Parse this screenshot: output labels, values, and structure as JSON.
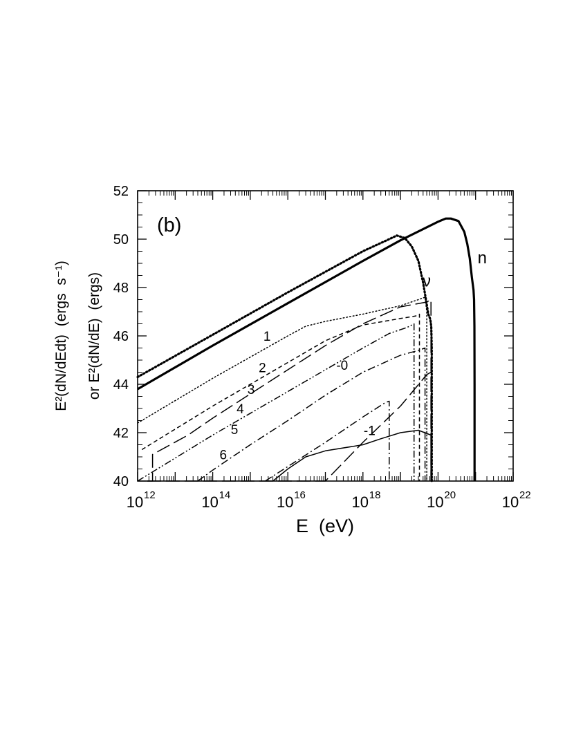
{
  "chart_data": {
    "type": "line",
    "panel_label": "(b)",
    "xlabel": "E  (eV)",
    "ylabel_line1": "E²(dN/dEdt)  (ergs  s⁻¹)",
    "ylabel_line2": "or E²(dN/dE)  (ergs)",
    "x_scale": "log",
    "xlim": [
      1000000000000.0,
      1e+22
    ],
    "ylim": [
      40,
      52
    ],
    "x_ticks": [
      {
        "base": "10",
        "exp": "12",
        "value": 1000000000000.0
      },
      {
        "base": "10",
        "exp": "14",
        "value": 100000000000000.0
      },
      {
        "base": "10",
        "exp": "16",
        "value": 1e+16
      },
      {
        "base": "10",
        "exp": "18",
        "value": 1e+18
      },
      {
        "base": "10",
        "exp": "20",
        "value": 1e+20
      },
      {
        "base": "10",
        "exp": "22",
        "value": 1e+22
      }
    ],
    "y_ticks": [
      "40",
      "42",
      "44",
      "46",
      "48",
      "50",
      "52"
    ],
    "grid": false,
    "series": [
      {
        "name": "n",
        "style": "solid",
        "width": 3.2,
        "x": [
          1000000000000.0,
          100000000000000.0,
          1e+16,
          1e+18,
          1e+19,
          1e+20,
          1.6e+20,
          2.2e+20,
          3.5e+20,
          5e+20,
          6e+20,
          7e+20,
          8e+20,
          8.8e+20,
          9.1e+20,
          9.3e+20,
          9.4e+20,
          9.4e+20
        ],
        "y": [
          43.8,
          45.6,
          47.35,
          49.1,
          49.95,
          50.72,
          50.85,
          50.85,
          50.75,
          50.3,
          49.8,
          49.2,
          48.4,
          47.9,
          47.5,
          46.4,
          44.0,
          40.0
        ]
      },
      {
        "name": "ν",
        "style": "dotted",
        "width": 3.2,
        "x": [
          1000000000000.0,
          100000000000000.0,
          1e+16,
          1e+18,
          5e+18,
          8e+18,
          1.3e+19,
          2e+19,
          3e+19,
          4e+19,
          5e+19,
          5.5e+19,
          6.2e+19,
          6.6e+19,
          6.8e+19,
          6.8e+19
        ],
        "y": [
          44.3,
          46.05,
          47.8,
          49.5,
          50.0,
          50.15,
          50.05,
          49.7,
          49.1,
          48.2,
          47.3,
          46.9,
          46.7,
          46.4,
          45.5,
          40.0
        ]
      },
      {
        "name": "1",
        "style": "dotted",
        "width": 1.5,
        "x": [
          1000000000000.0,
          100000000000000.0,
          1e+16,
          3e+16,
          1e+17,
          1e+18,
          1e+19,
          3e+19,
          4.5e+19,
          5e+19,
          5e+19
        ],
        "y": [
          42.4,
          44.25,
          46.0,
          46.4,
          46.6,
          46.9,
          47.25,
          47.5,
          47.6,
          47.0,
          40.0
        ]
      },
      {
        "name": "2",
        "style": "dashed",
        "width": 1.5,
        "x": [
          1300000000000.0,
          100000000000000.0,
          1e+16,
          1e+17,
          1e+18,
          1e+19,
          2.5e+19,
          3.2e+19,
          3.2e+19
        ],
        "y": [
          41.3,
          43.1,
          44.9,
          45.8,
          46.45,
          46.72,
          46.82,
          46.9,
          40.0
        ]
      },
      {
        "name": "3",
        "style": "dashdotdot",
        "width": 1.5,
        "x": [
          1000000000000.0,
          100000000000000.0,
          1e+16,
          1e+17,
          1e+18,
          5e+18,
          1.5e+19,
          2.3e+19,
          2.3e+19
        ],
        "y": [
          40.0,
          41.9,
          43.7,
          44.6,
          45.5,
          46.1,
          46.35,
          46.5,
          40.0
        ]
      },
      {
        "name": "0",
        "style": "longdash",
        "width": 1.5,
        "x": [
          1800000000000.0,
          2500000000000.0,
          2500000000000.0,
          22000000000000.0,
          100000000000000.0,
          1000000000000000.0,
          1e+16,
          1e+17,
          1e+18,
          1e+19,
          5e+19,
          6.5e+19,
          6.5e+19
        ],
        "y": [
          40.0,
          40.0,
          41.1,
          41.9,
          42.6,
          43.6,
          44.6,
          45.6,
          46.5,
          47.2,
          47.4,
          47.5,
          40.0
        ]
      },
      {
        "name": "4",
        "style": "dashdot",
        "width": 1.5,
        "x": [
          40000000000000.0,
          100000000000000.0,
          1000000000000000.0,
          1e+16,
          1e+17,
          1e+18,
          1e+19,
          3e+19,
          4.5e+19,
          4.5e+19
        ],
        "y": [
          40.0,
          40.45,
          41.5,
          42.5,
          43.55,
          44.5,
          45.2,
          45.4,
          45.5,
          40.0
        ]
      },
      {
        "name": "5",
        "style": "longdash",
        "width": 1.5,
        "x": [
          1800000000000.0,
          10000000000000.0,
          100000000000000.0,
          1000000000000000.0,
          1e+16,
          1e+17,
          1e+18,
          1e+19,
          5e+19,
          6.5e+19,
          6.5e+19
        ],
        "y": [
          40.0,
          40.0,
          40.0,
          40.0,
          40.0,
          40.0,
          41.6,
          43.1,
          44.4,
          44.5,
          40.0
        ]
      },
      {
        "name": "6",
        "style": "dashdot",
        "width": 1.5,
        "x": [
          2500000000000000.0,
          1e+16,
          1e+17,
          1e+18,
          4e+18,
          5e+18,
          5e+18
        ],
        "y": [
          40.0,
          40.6,
          41.6,
          42.65,
          43.25,
          43.3,
          40.0
        ]
      },
      {
        "name": "-1",
        "style": "solid",
        "width": 1.5,
        "x": [
          4000000000000000.0,
          1e+16,
          3e+16,
          1e+17,
          1e+18,
          3e+18,
          1e+19,
          3e+19,
          6.5e+19,
          6.5e+19
        ],
        "y": [
          40.0,
          40.5,
          41.0,
          41.25,
          41.5,
          41.75,
          42.0,
          42.1,
          41.9,
          40.0
        ]
      }
    ],
    "curve_labels": [
      {
        "text": "n",
        "x": 1.5e+21,
        "y": 49.0
      },
      {
        "text": "ν",
        "x": 5e+19,
        "y": 48.05
      },
      {
        "text": "1",
        "x": 2800000000000000.0,
        "y": 45.8
      },
      {
        "text": "2",
        "x": 2100000000000000.0,
        "y": 44.5
      },
      {
        "text": "3",
        "x": 1050000000000000.0,
        "y": 43.6
      },
      {
        "text": "-0",
        "x": 2.8e+17,
        "y": 44.6
      },
      {
        "text": "4",
        "x": 540000000000000.0,
        "y": 42.8
      },
      {
        "text": "5",
        "x": 380000000000000.0,
        "y": 41.95
      },
      {
        "text": "6",
        "x": 190000000000000.0,
        "y": 40.9
      },
      {
        "text": "-1",
        "x": 1.5e+18,
        "y": 41.9
      }
    ]
  }
}
